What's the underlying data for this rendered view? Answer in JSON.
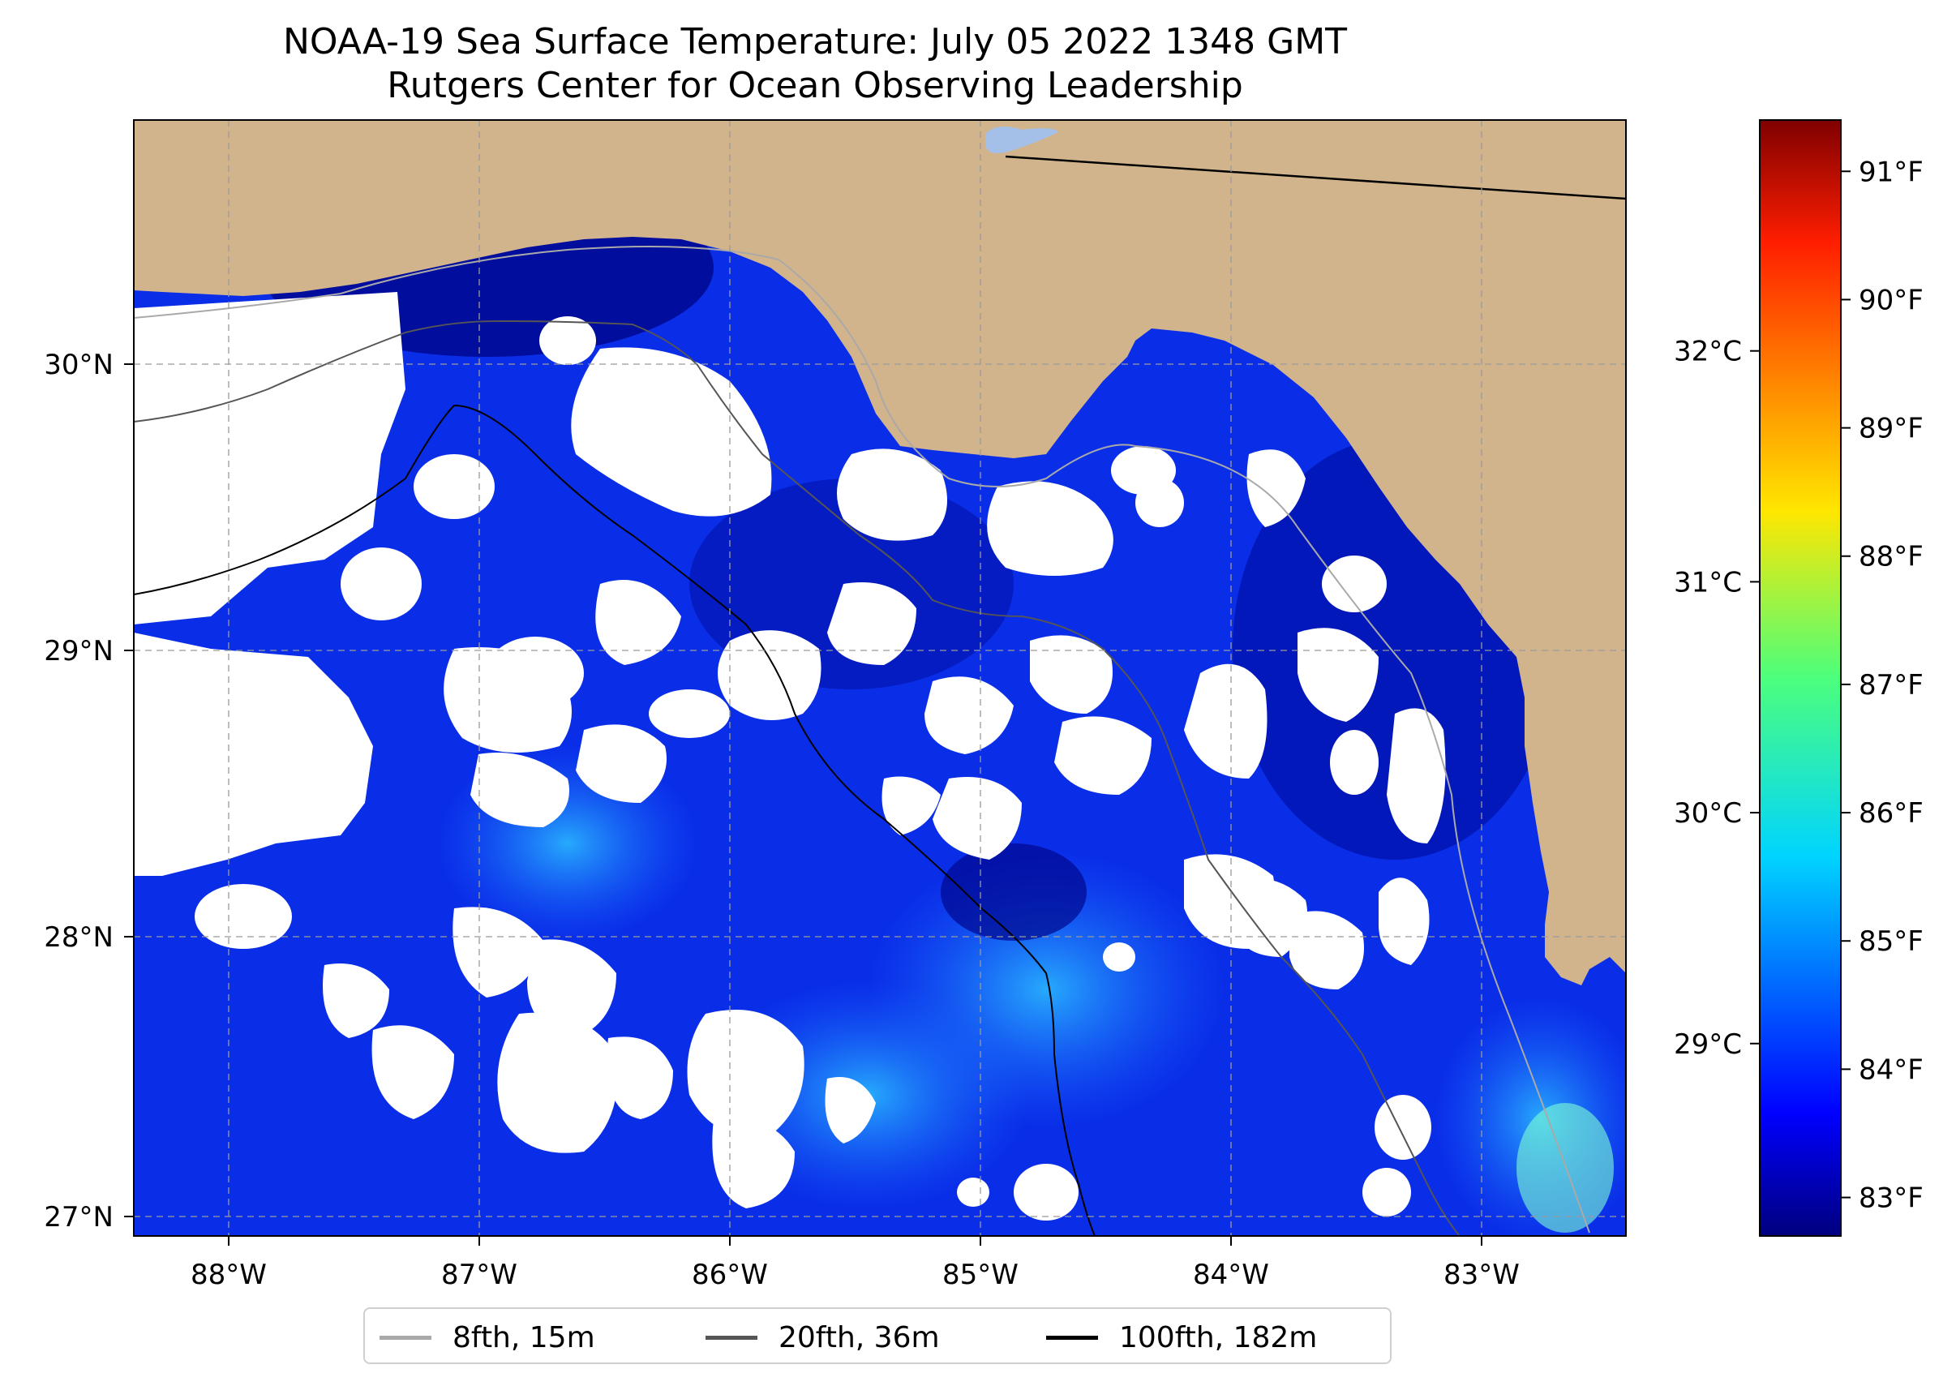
{
  "title": {
    "line1": "NOAA-19 Sea Surface Temperature: July 05 2022 1348 GMT",
    "line2": "Rutgers Center for Ocean Observing Leadership"
  },
  "map": {
    "lon_range": [
      -88.33,
      -82.37
    ],
    "lat_range": [
      26.94,
      30.86
    ],
    "lon_ticks": [
      "88°W",
      "87°W",
      "86°W",
      "85°W",
      "84°W",
      "83°W"
    ],
    "lat_ticks": [
      "27°N",
      "28°N",
      "29°N",
      "30°N"
    ],
    "land_color": "#d2b48c",
    "ocean_colormap": "jet",
    "cloud_mask_color": "#ffffff",
    "gridlines": true
  },
  "colorbar": {
    "fahrenheit_ticks": [
      "83°F",
      "84°F",
      "85°F",
      "86°F",
      "87°F",
      "88°F",
      "89°F",
      "90°F",
      "91°F"
    ],
    "fahrenheit_values": [
      83,
      84,
      85,
      86,
      87,
      88,
      89,
      90,
      91
    ],
    "celsius_ticks": [
      "29°C",
      "30°C",
      "31°C",
      "32°C"
    ],
    "celsius_values": [
      29,
      30,
      31,
      32
    ],
    "range_f": [
      82.7,
      91.4
    ]
  },
  "legend": {
    "items": [
      {
        "label": "8fth, 15m",
        "color": "#a9a9a9"
      },
      {
        "label": "20fth, 36m",
        "color": "#555555"
      },
      {
        "label": "100fth, 182m",
        "color": "#000000"
      }
    ],
    "placement": "bottom-center"
  }
}
